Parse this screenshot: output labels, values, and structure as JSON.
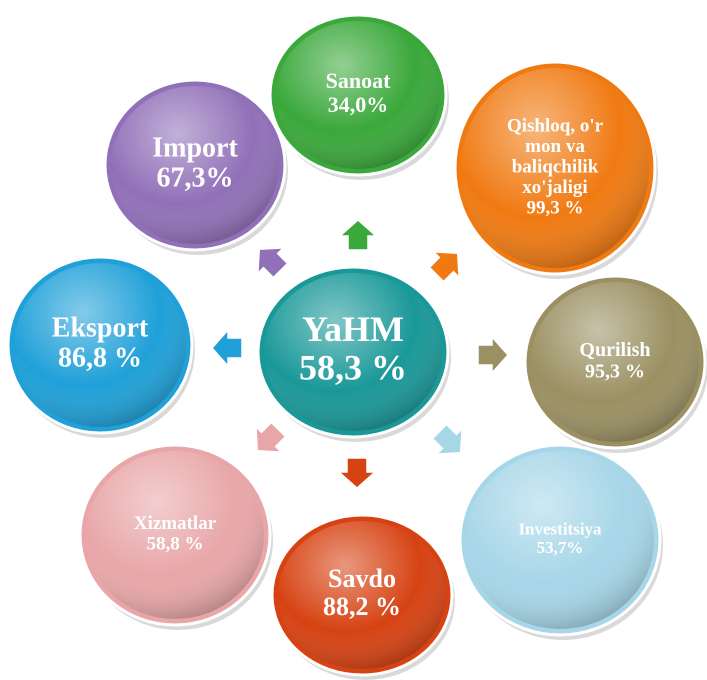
{
  "center": {
    "label": [
      "YaHM"
    ],
    "value": "58,3 %"
  },
  "nodes": [
    {
      "label": [
        "Sanoat"
      ],
      "value": "34,0%"
    },
    {
      "label": [
        "Qishloq, o'r",
        "mon va",
        "baliqchilik",
        "xo'jaligi"
      ],
      "value": "99,3 %"
    },
    {
      "label": [
        "Qurilish"
      ],
      "value": "95,3 %"
    },
    {
      "label": [
        "Investitsiya"
      ],
      "value": "53,7%"
    },
    {
      "label": [
        "Savdo"
      ],
      "value": "88,2 %"
    },
    {
      "label": [
        "Xizmatlar"
      ],
      "value": "58,8 %"
    },
    {
      "label": [
        "Eksport"
      ],
      "value": "86,8 %"
    },
    {
      "label": [
        "Import"
      ],
      "value": "67,3%"
    }
  ]
}
